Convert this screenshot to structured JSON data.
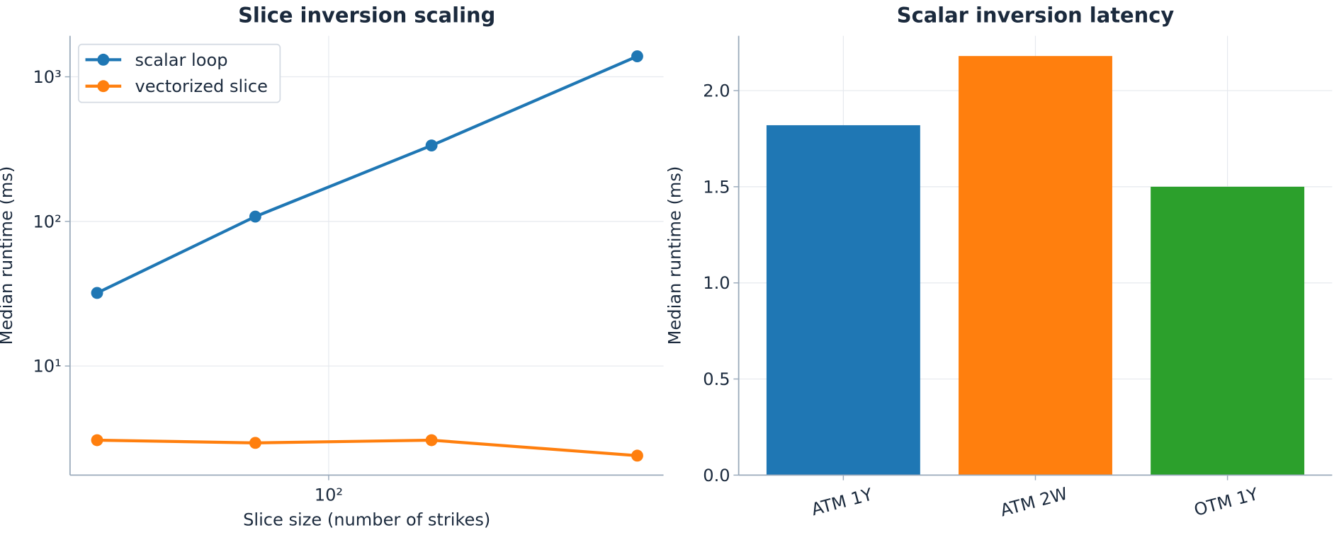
{
  "chart_data": [
    {
      "type": "line",
      "title": "Slice inversion scaling",
      "xlabel": "Slice size (number of strikes)",
      "ylabel": "Median runtime (ms)",
      "x": [
        21,
        61,
        200,
        800
      ],
      "xscale": "log",
      "yscale": "log",
      "xlim": [
        17.5,
        955
      ],
      "ylim": [
        1.76,
        1920
      ],
      "xticks": [
        {
          "value": 100,
          "label": "10²"
        }
      ],
      "yticks": [
        {
          "value": 10,
          "label": "10¹"
        },
        {
          "value": 100,
          "label": "10²"
        },
        {
          "value": 1000,
          "label": "10³"
        }
      ],
      "grid": true,
      "legend": "upper left",
      "series": [
        {
          "name": "scalar loop",
          "color": "#1f77b4",
          "values": [
            32,
            108,
            335,
            1386
          ]
        },
        {
          "name": "vectorized slice",
          "color": "#ff7f0e",
          "values": [
            3.07,
            2.94,
            3.07,
            2.4
          ]
        }
      ]
    },
    {
      "type": "bar",
      "title": "Scalar inversion latency",
      "ylabel": "Median runtime (ms)",
      "categories": [
        "ATM 1Y",
        "ATM 2W",
        "OTM 1Y"
      ],
      "values": [
        1.82,
        2.18,
        1.5
      ],
      "colors": [
        "#1f77b4",
        "#ff7f0e",
        "#2ca02c"
      ],
      "ylim": [
        0,
        2.285
      ],
      "yticks": [
        {
          "value": 0,
          "label": "0.0"
        },
        {
          "value": 0.5,
          "label": "0.5"
        },
        {
          "value": 1,
          "label": "1.0"
        },
        {
          "value": 1.5,
          "label": "1.5"
        },
        {
          "value": 2,
          "label": "2.0"
        }
      ],
      "grid": true
    }
  ]
}
